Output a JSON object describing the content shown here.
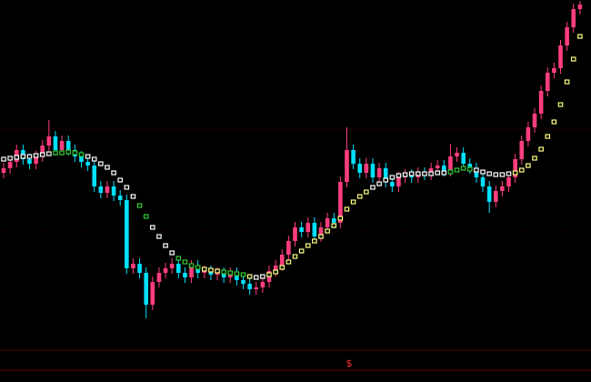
{
  "chart_data": {
    "type": "candlestick",
    "ylim": [
      0,
      420
    ],
    "up_color": "#ff3d7f",
    "down_color": "#00e0ff",
    "open": [
      230,
      235,
      242,
      255,
      245,
      240,
      248,
      260,
      270,
      255,
      265,
      255,
      248,
      242,
      238,
      215,
      208,
      215,
      205,
      200,
      125,
      130,
      120,
      85,
      110,
      120,
      125,
      130,
      120,
      115,
      128,
      120,
      122,
      118,
      120,
      115,
      120,
      112,
      108,
      102,
      104,
      110,
      122,
      128,
      140,
      155,
      170,
      165,
      175,
      160,
      170,
      180,
      175,
      220,
      255,
      240,
      230,
      240,
      225,
      235,
      220,
      215,
      225,
      228,
      225,
      230,
      228,
      235,
      238,
      232,
      248,
      252,
      240,
      235,
      225,
      215,
      198,
      210,
      215,
      225,
      245,
      265,
      280,
      295,
      320,
      340,
      345,
      370,
      390,
      410
    ],
    "high": [
      241,
      248,
      261,
      261,
      251,
      254,
      266,
      288,
      276,
      271,
      271,
      261,
      254,
      248,
      244,
      221,
      221,
      221,
      211,
      206,
      136,
      136,
      126,
      116,
      126,
      131,
      136,
      136,
      126,
      134,
      134,
      128,
      128,
      126,
      126,
      126,
      126,
      118,
      114,
      110,
      116,
      128,
      134,
      146,
      161,
      176,
      176,
      181,
      181,
      176,
      186,
      186,
      226,
      280,
      261,
      246,
      246,
      246,
      241,
      241,
      226,
      231,
      234,
      234,
      236,
      236,
      241,
      244,
      244,
      262,
      258,
      258,
      246,
      241,
      231,
      221,
      216,
      221,
      231,
      251,
      271,
      286,
      301,
      326,
      346,
      351,
      376,
      396,
      416,
      419
    ],
    "low": [
      224,
      229,
      236,
      239,
      234,
      234,
      242,
      254,
      249,
      249,
      249,
      242,
      236,
      232,
      209,
      202,
      202,
      199,
      194,
      119,
      119,
      114,
      70,
      79,
      104,
      114,
      119,
      114,
      109,
      109,
      114,
      114,
      112,
      112,
      109,
      109,
      106,
      102,
      96,
      96,
      98,
      104,
      116,
      122,
      134,
      149,
      159,
      159,
      154,
      154,
      164,
      169,
      169,
      214,
      234,
      224,
      224,
      219,
      219,
      214,
      209,
      209,
      219,
      219,
      219,
      222,
      222,
      229,
      226,
      226,
      242,
      234,
      229,
      219,
      209,
      186,
      192,
      204,
      209,
      219,
      239,
      259,
      274,
      289,
      314,
      334,
      339,
      364,
      384,
      404
    ],
    "close": [
      235,
      242,
      255,
      245,
      240,
      248,
      260,
      270,
      255,
      265,
      255,
      248,
      242,
      238,
      215,
      208,
      215,
      205,
      200,
      125,
      130,
      120,
      85,
      110,
      120,
      125,
      130,
      120,
      115,
      128,
      120,
      122,
      118,
      120,
      115,
      120,
      112,
      108,
      102,
      104,
      110,
      122,
      128,
      140,
      155,
      170,
      165,
      175,
      160,
      170,
      180,
      175,
      220,
      255,
      240,
      230,
      240,
      225,
      235,
      220,
      215,
      225,
      228,
      225,
      230,
      228,
      235,
      238,
      232,
      248,
      252,
      240,
      235,
      225,
      215,
      198,
      210,
      215,
      225,
      245,
      265,
      280,
      295,
      320,
      340,
      345,
      370,
      390,
      410,
      415
    ],
    "indicator": [
      245,
      246,
      247,
      248,
      248,
      249,
      250,
      251,
      252,
      252,
      253,
      252,
      250,
      248,
      245,
      240,
      236,
      230,
      222,
      214,
      204,
      194,
      182,
      170,
      160,
      150,
      142,
      136,
      132,
      128,
      126,
      124,
      123,
      122,
      121,
      120,
      119,
      118,
      116,
      115,
      116,
      118,
      121,
      126,
      132,
      138,
      144,
      150,
      155,
      160,
      166,
      172,
      180,
      190,
      198,
      204,
      209,
      214,
      218,
      222,
      225,
      227,
      228,
      229,
      229,
      229,
      229,
      230,
      230,
      231,
      233,
      235,
      234,
      233,
      231,
      229,
      228,
      228,
      229,
      230,
      233,
      238,
      246,
      256,
      270,
      286,
      305,
      330,
      355,
      380
    ],
    "indicator_colors": [
      "#ffffff",
      "#ffffff",
      "#ffffff",
      "#ffffff",
      "#ffffff",
      "#ffffff",
      "#ffffff",
      "#ffffff",
      "#33cc33",
      "#33cc33",
      "#33cc33",
      "#33cc33",
      "#33cc33",
      "#ffffff",
      "#ffffff",
      "#ffffff",
      "#ffffff",
      "#ffffff",
      "#ffffff",
      "#ffffff",
      "#ffffff",
      "#33cc33",
      "#33cc33",
      "#ffffff",
      "#ffffff",
      "#ffffff",
      "#ffffff",
      "#33cc33",
      "#33cc33",
      "#33cc33",
      "#33cc33",
      "#ffff80",
      "#ffff80",
      "#ffff80",
      "#33cc33",
      "#33cc33",
      "#33cc33",
      "#33cc33",
      "#ffff80",
      "#ffffff",
      "#ffffff",
      "#ffff80",
      "#ffff80",
      "#ffff80",
      "#ffff80",
      "#ffff80",
      "#ffff80",
      "#ffff80",
      "#ffff80",
      "#ffff80",
      "#ffff80",
      "#ffff80",
      "#ffff80",
      "#ffff80",
      "#ffff80",
      "#ffff80",
      "#ffff80",
      "#ffffff",
      "#ffffff",
      "#ffffff",
      "#ffffff",
      "#ffffff",
      "#ffffff",
      "#ffffff",
      "#ffffff",
      "#ffffff",
      "#ffffff",
      "#ffffff",
      "#ffffff",
      "#33cc33",
      "#33cc33",
      "#33cc33",
      "#33cc33",
      "#ffffff",
      "#ffffff",
      "#ffffff",
      "#ffffff",
      "#ffffff",
      "#ffffff",
      "#ffff80",
      "#ffff80",
      "#ffff80",
      "#ffff80",
      "#ffff80",
      "#ffff80",
      "#ffff80",
      "#ffff80",
      "#ffff80",
      "#ffff80",
      "#ffff80"
    ],
    "marker_label": "$"
  }
}
